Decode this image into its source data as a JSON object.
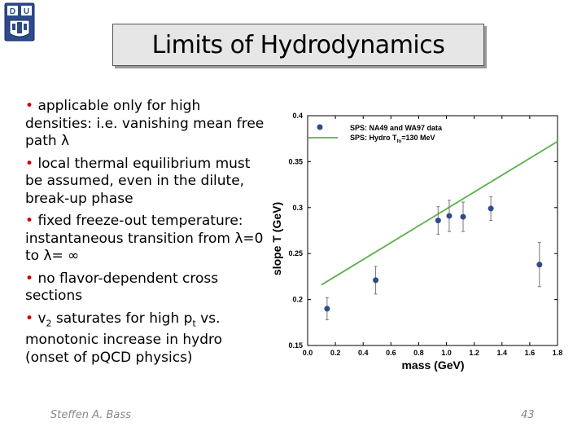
{
  "slide": {
    "title": "Limits of Hydrodynamics",
    "logo_letters": [
      "D",
      "U"
    ],
    "bullets": [
      {
        "bullet": "•",
        "text": "applicable only for high densities: i.e. vanishing mean free path λ"
      },
      {
        "bullet": "•",
        "text": "local thermal equilibrium must be assumed, even in the dilute, break-up phase"
      },
      {
        "bullet": "•",
        "text": "fixed freeze-out temperature: instantaneous transition from λ=0 to λ= ∞"
      },
      {
        "bullet": "•",
        "text": "no flavor-dependent cross sections"
      },
      {
        "bullet": "•",
        "parts": {
          "a": "v",
          "b": "2",
          "c": " saturates for high p",
          "d": "t",
          "e": " vs. monotonic increase in hydro (onset of pQCD physics)"
        }
      }
    ],
    "footer_author": "Steffen A. Bass",
    "page_number": "43"
  },
  "chart_data": {
    "type": "scatter",
    "xlabel": "mass (GeV)",
    "ylabel": "slope T (GeV)",
    "xlim": [
      0.0,
      1.8
    ],
    "ylim": [
      0.15,
      0.4
    ],
    "xticks": [
      0.0,
      0.2,
      0.4,
      0.6,
      0.8,
      1.0,
      1.2,
      1.4,
      1.6,
      1.8
    ],
    "xtick_labels": [
      "0.0",
      "0.2",
      "0.4",
      "0.6",
      "0.8",
      "1.0",
      "1.2",
      "1.4",
      "1.6",
      "1.8"
    ],
    "yticks": [
      0.15,
      0.2,
      0.25,
      0.3,
      0.35,
      0.4
    ],
    "ytick_labels": [
      "0.15",
      "0.2",
      "0.25",
      "0.3",
      "0.35",
      "0.4"
    ],
    "grid": false,
    "legend_position": "top",
    "colors": {
      "points": "#2e4a8a",
      "line": "#5bb04a",
      "errbar": "#777777"
    },
    "series": [
      {
        "name": "SPS: NA49 and WA97 data",
        "kind": "points",
        "x": [
          0.14,
          0.49,
          0.94,
          1.02,
          1.12,
          1.32,
          1.67
        ],
        "y": [
          0.19,
          0.221,
          0.286,
          0.291,
          0.29,
          0.299,
          0.238
        ],
        "err": [
          0.012,
          0.015,
          0.015,
          0.017,
          0.016,
          0.013,
          0.024
        ]
      },
      {
        "name_main": "SPS: Hydro T",
        "name_sub": "fo",
        "name_tail": "=130 MeV",
        "kind": "line",
        "x": [
          0.1,
          1.8
        ],
        "y": [
          0.216,
          0.372
        ]
      }
    ]
  }
}
